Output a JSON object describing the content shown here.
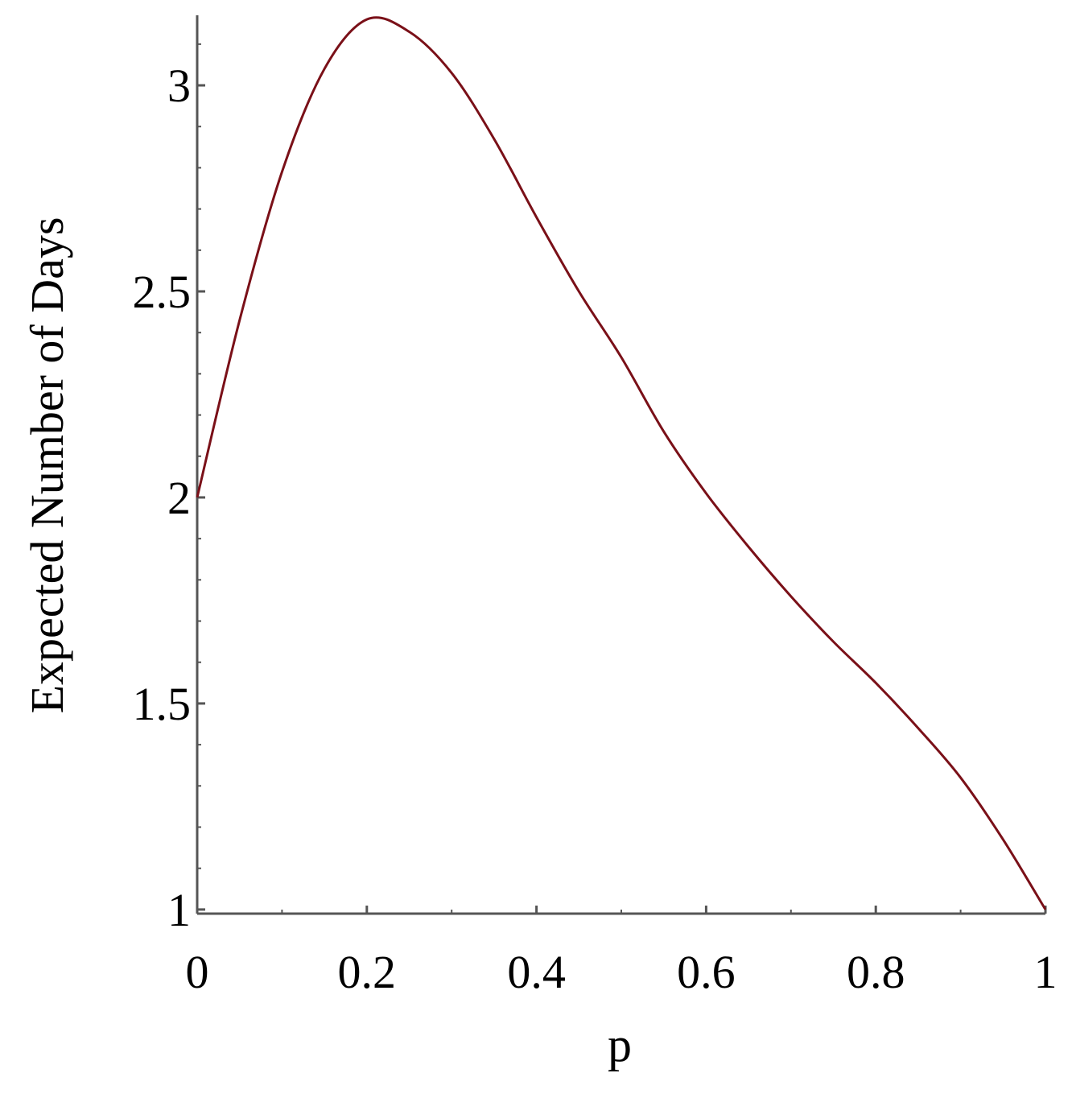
{
  "chart_data": {
    "type": "line",
    "x_label": "p",
    "y_label": "Expected Number of Days",
    "x": [
      0,
      0.05,
      0.1,
      0.15,
      0.2,
      0.25,
      0.3,
      0.35,
      0.4,
      0.45,
      0.5,
      0.55,
      0.6,
      0.65,
      0.7,
      0.75,
      0.8,
      0.85,
      0.9,
      0.95,
      1
    ],
    "series": [
      {
        "color": "#7a1018",
        "values": [
          2.0,
          2.43,
          2.79,
          3.04,
          3.16,
          3.13,
          3.03,
          2.87,
          2.68,
          2.5,
          2.34,
          2.16,
          2.01,
          1.88,
          1.76,
          1.65,
          1.55,
          1.44,
          1.32,
          1.17,
          1.0
        ]
      }
    ],
    "xlim": [
      0,
      1
    ],
    "ylim": [
      0.99,
      3.17
    ],
    "xticks": [
      0,
      0.2,
      0.4,
      0.6,
      0.8,
      1
    ],
    "yticks": [
      1,
      1.5,
      2,
      2.5,
      3
    ],
    "xminorticks": [
      0.1,
      0.3,
      0.5,
      0.7,
      0.9
    ],
    "yminorticks": [
      1.1,
      1.2,
      1.3,
      1.4,
      1.6,
      1.7,
      1.8,
      1.9,
      2.1,
      2.2,
      2.3,
      2.4,
      2.6,
      2.7,
      2.8,
      2.9,
      3.1
    ]
  }
}
